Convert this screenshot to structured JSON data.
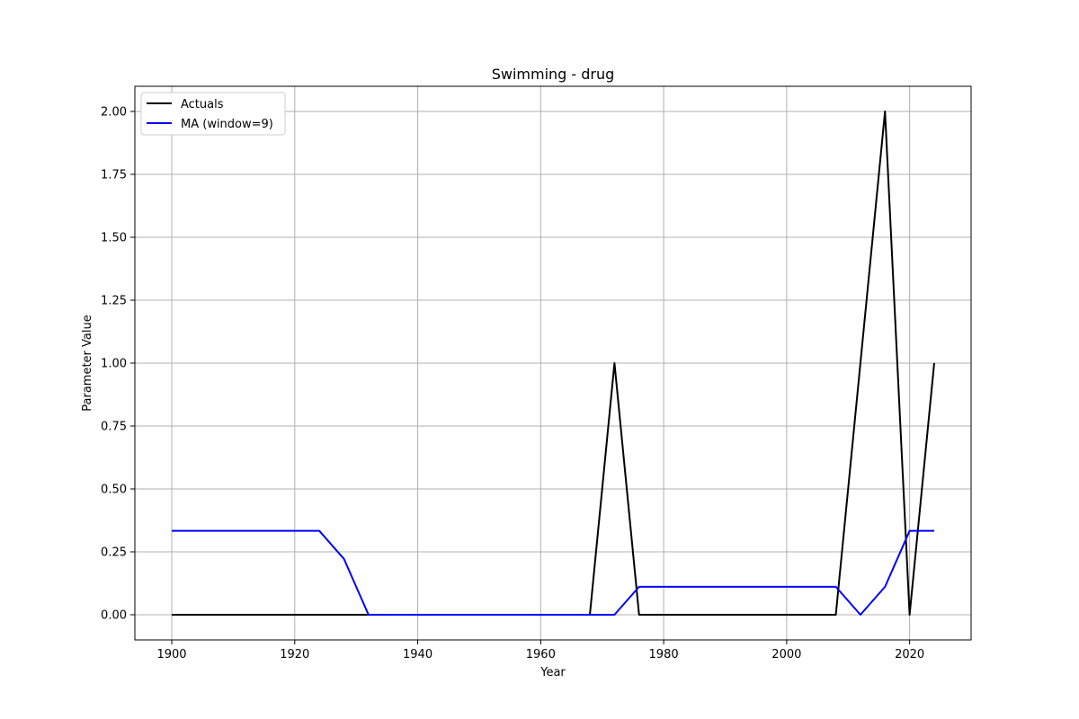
{
  "chart_data": {
    "type": "line",
    "title": "Swimming - drug",
    "xlabel": "Year",
    "ylabel": "Parameter Value",
    "xlim": [
      1894,
      2030
    ],
    "ylim": [
      -0.1,
      2.1
    ],
    "xticks": [
      1900,
      1920,
      1940,
      1960,
      1980,
      2000,
      2020
    ],
    "xtick_labels": [
      "1900",
      "1920",
      "1940",
      "1960",
      "1980",
      "2000",
      "2020"
    ],
    "yticks": [
      0.0,
      0.25,
      0.5,
      0.75,
      1.0,
      1.25,
      1.5,
      1.75,
      2.0
    ],
    "ytick_labels": [
      "0.00",
      "0.25",
      "0.50",
      "0.75",
      "1.00",
      "1.25",
      "1.50",
      "1.75",
      "2.00"
    ],
    "grid": true,
    "legend_position": "top-left",
    "series": [
      {
        "name": "Actuals",
        "color": "#000000",
        "x": [
          1900,
          1904,
          1908,
          1912,
          1920,
          1924,
          1928,
          1932,
          1936,
          1948,
          1952,
          1956,
          1960,
          1964,
          1968,
          1972,
          1976,
          1980,
          1984,
          1988,
          1992,
          1996,
          2000,
          2004,
          2008,
          2012,
          2016,
          2020,
          2024
        ],
        "y": [
          0,
          0,
          0,
          0,
          0,
          0,
          0,
          0,
          0,
          0,
          0,
          0,
          0,
          0,
          0,
          1,
          0,
          0,
          0,
          0,
          0,
          0,
          0,
          0,
          0,
          1,
          2,
          0,
          1
        ]
      },
      {
        "name": "MA (window=9)",
        "color": "#0000ff",
        "x": [
          1900,
          1904,
          1908,
          1912,
          1920,
          1924,
          1928,
          1932,
          1936,
          1948,
          1952,
          1956,
          1960,
          1964,
          1968,
          1972,
          1976,
          1980,
          1984,
          1988,
          1992,
          1996,
          2000,
          2004,
          2008,
          2012,
          2016,
          2020,
          2024
        ],
        "y": [
          0.3333,
          0.3333,
          0.3333,
          0.3333,
          0.3333,
          0.3333,
          0.2222,
          0,
          0,
          0,
          0,
          0,
          0,
          0,
          0,
          0,
          0.1111,
          0.1111,
          0.1111,
          0.1111,
          0.1111,
          0.1111,
          0.1111,
          0.1111,
          0.1111,
          0,
          0.1111,
          0.3333,
          0.3333
        ]
      }
    ]
  }
}
